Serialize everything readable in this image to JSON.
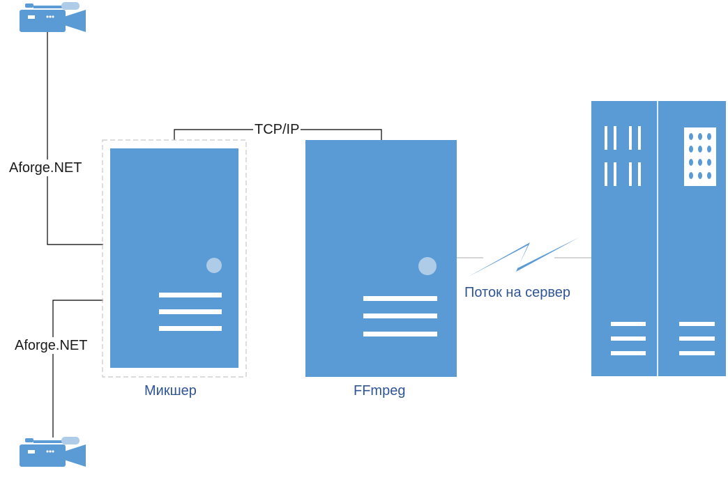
{
  "colors": {
    "device": "#5b9bd5",
    "device_light": "#aecbe8",
    "line": "#000000",
    "line_light": "#c8c8c8",
    "label_blue": "#2f5597"
  },
  "icons": {
    "camera_top": "video-camera-icon",
    "camera_bottom": "video-camera-icon",
    "mixer": "server-tower-icon",
    "ffmpeg": "server-tower-icon",
    "server": "server-rack-icon",
    "link": "lightning-bolt-icon"
  },
  "labels": {
    "aforge_top": "Aforge.NET",
    "aforge_bottom": "Aforge.NET",
    "tcp": "TCP/IP",
    "mixer": "Микшер",
    "ffmpeg": "FFmpeg",
    "stream": "Поток на сервер"
  }
}
